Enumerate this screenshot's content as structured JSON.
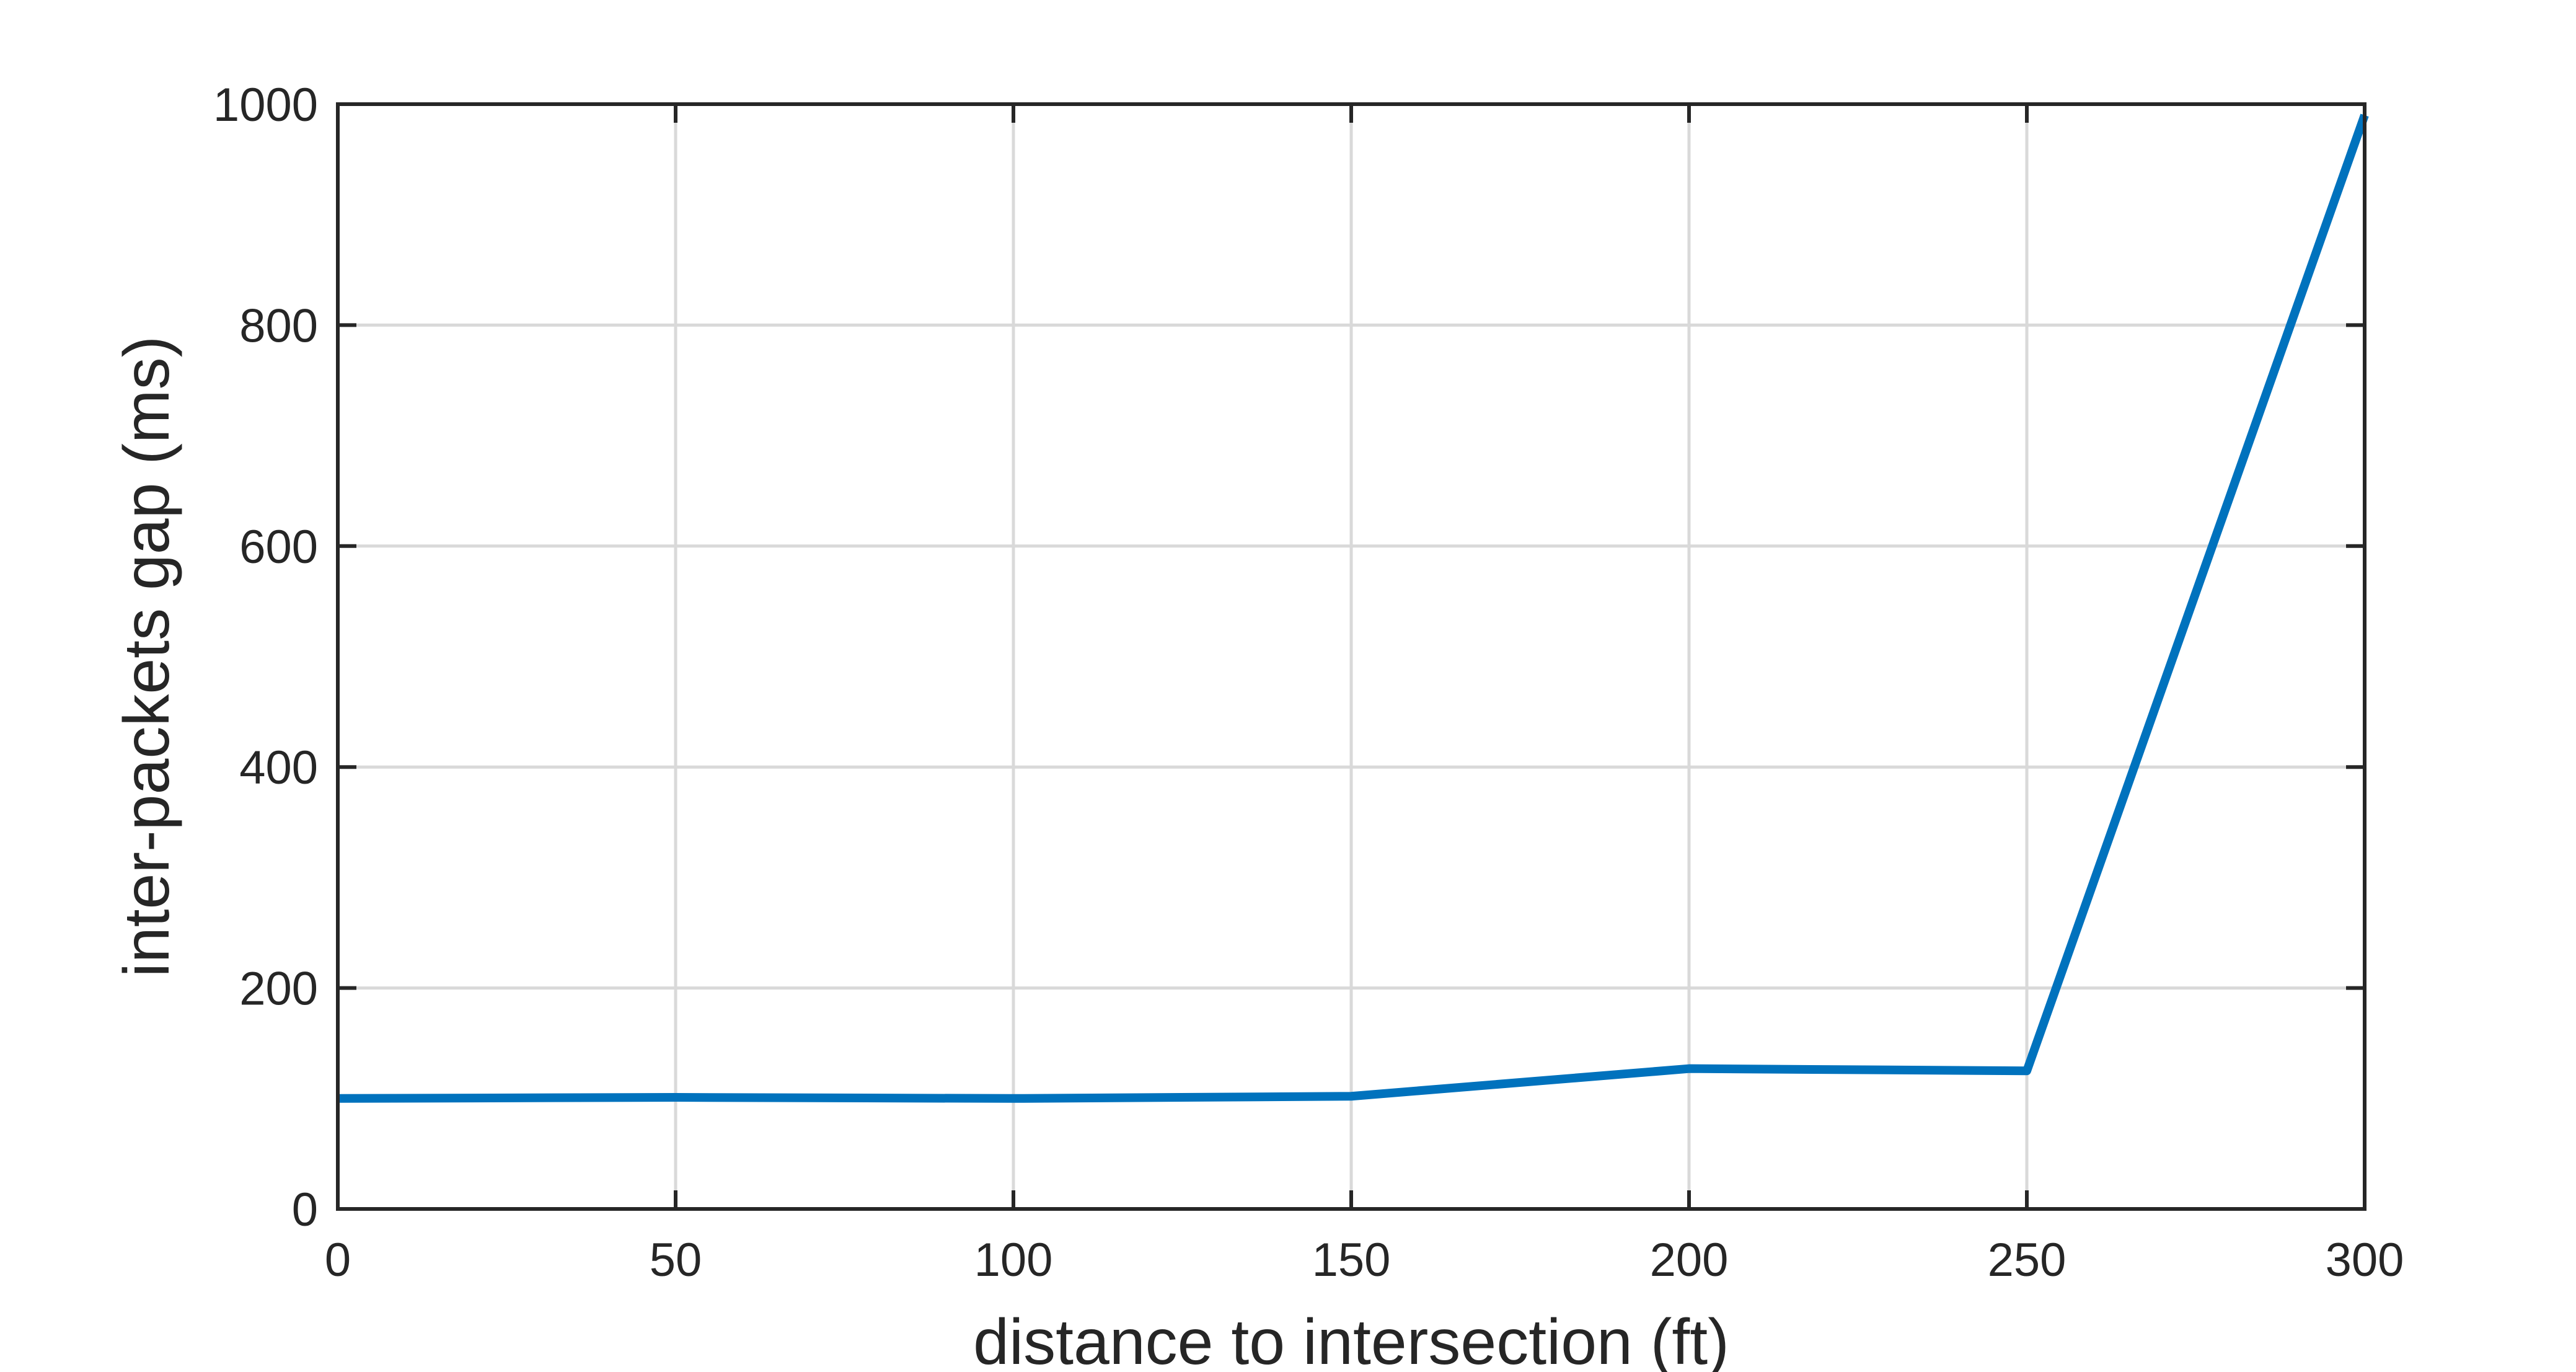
{
  "chart_data": {
    "type": "line",
    "title": "",
    "xlabel": "distance to intersection (ft)",
    "ylabel": "inter-packets gap (ms)",
    "xlim": [
      0,
      300
    ],
    "ylim": [
      0,
      1000
    ],
    "xticks": [
      0,
      50,
      100,
      150,
      200,
      250,
      300
    ],
    "yticks": [
      0,
      200,
      400,
      600,
      800,
      1000
    ],
    "grid": true,
    "series": [
      {
        "color": "#0072BD",
        "x": [
          0,
          50,
          100,
          150,
          200,
          250,
          300
        ],
        "y": [
          100,
          101,
          100,
          102,
          127,
          125,
          990
        ]
      }
    ]
  }
}
